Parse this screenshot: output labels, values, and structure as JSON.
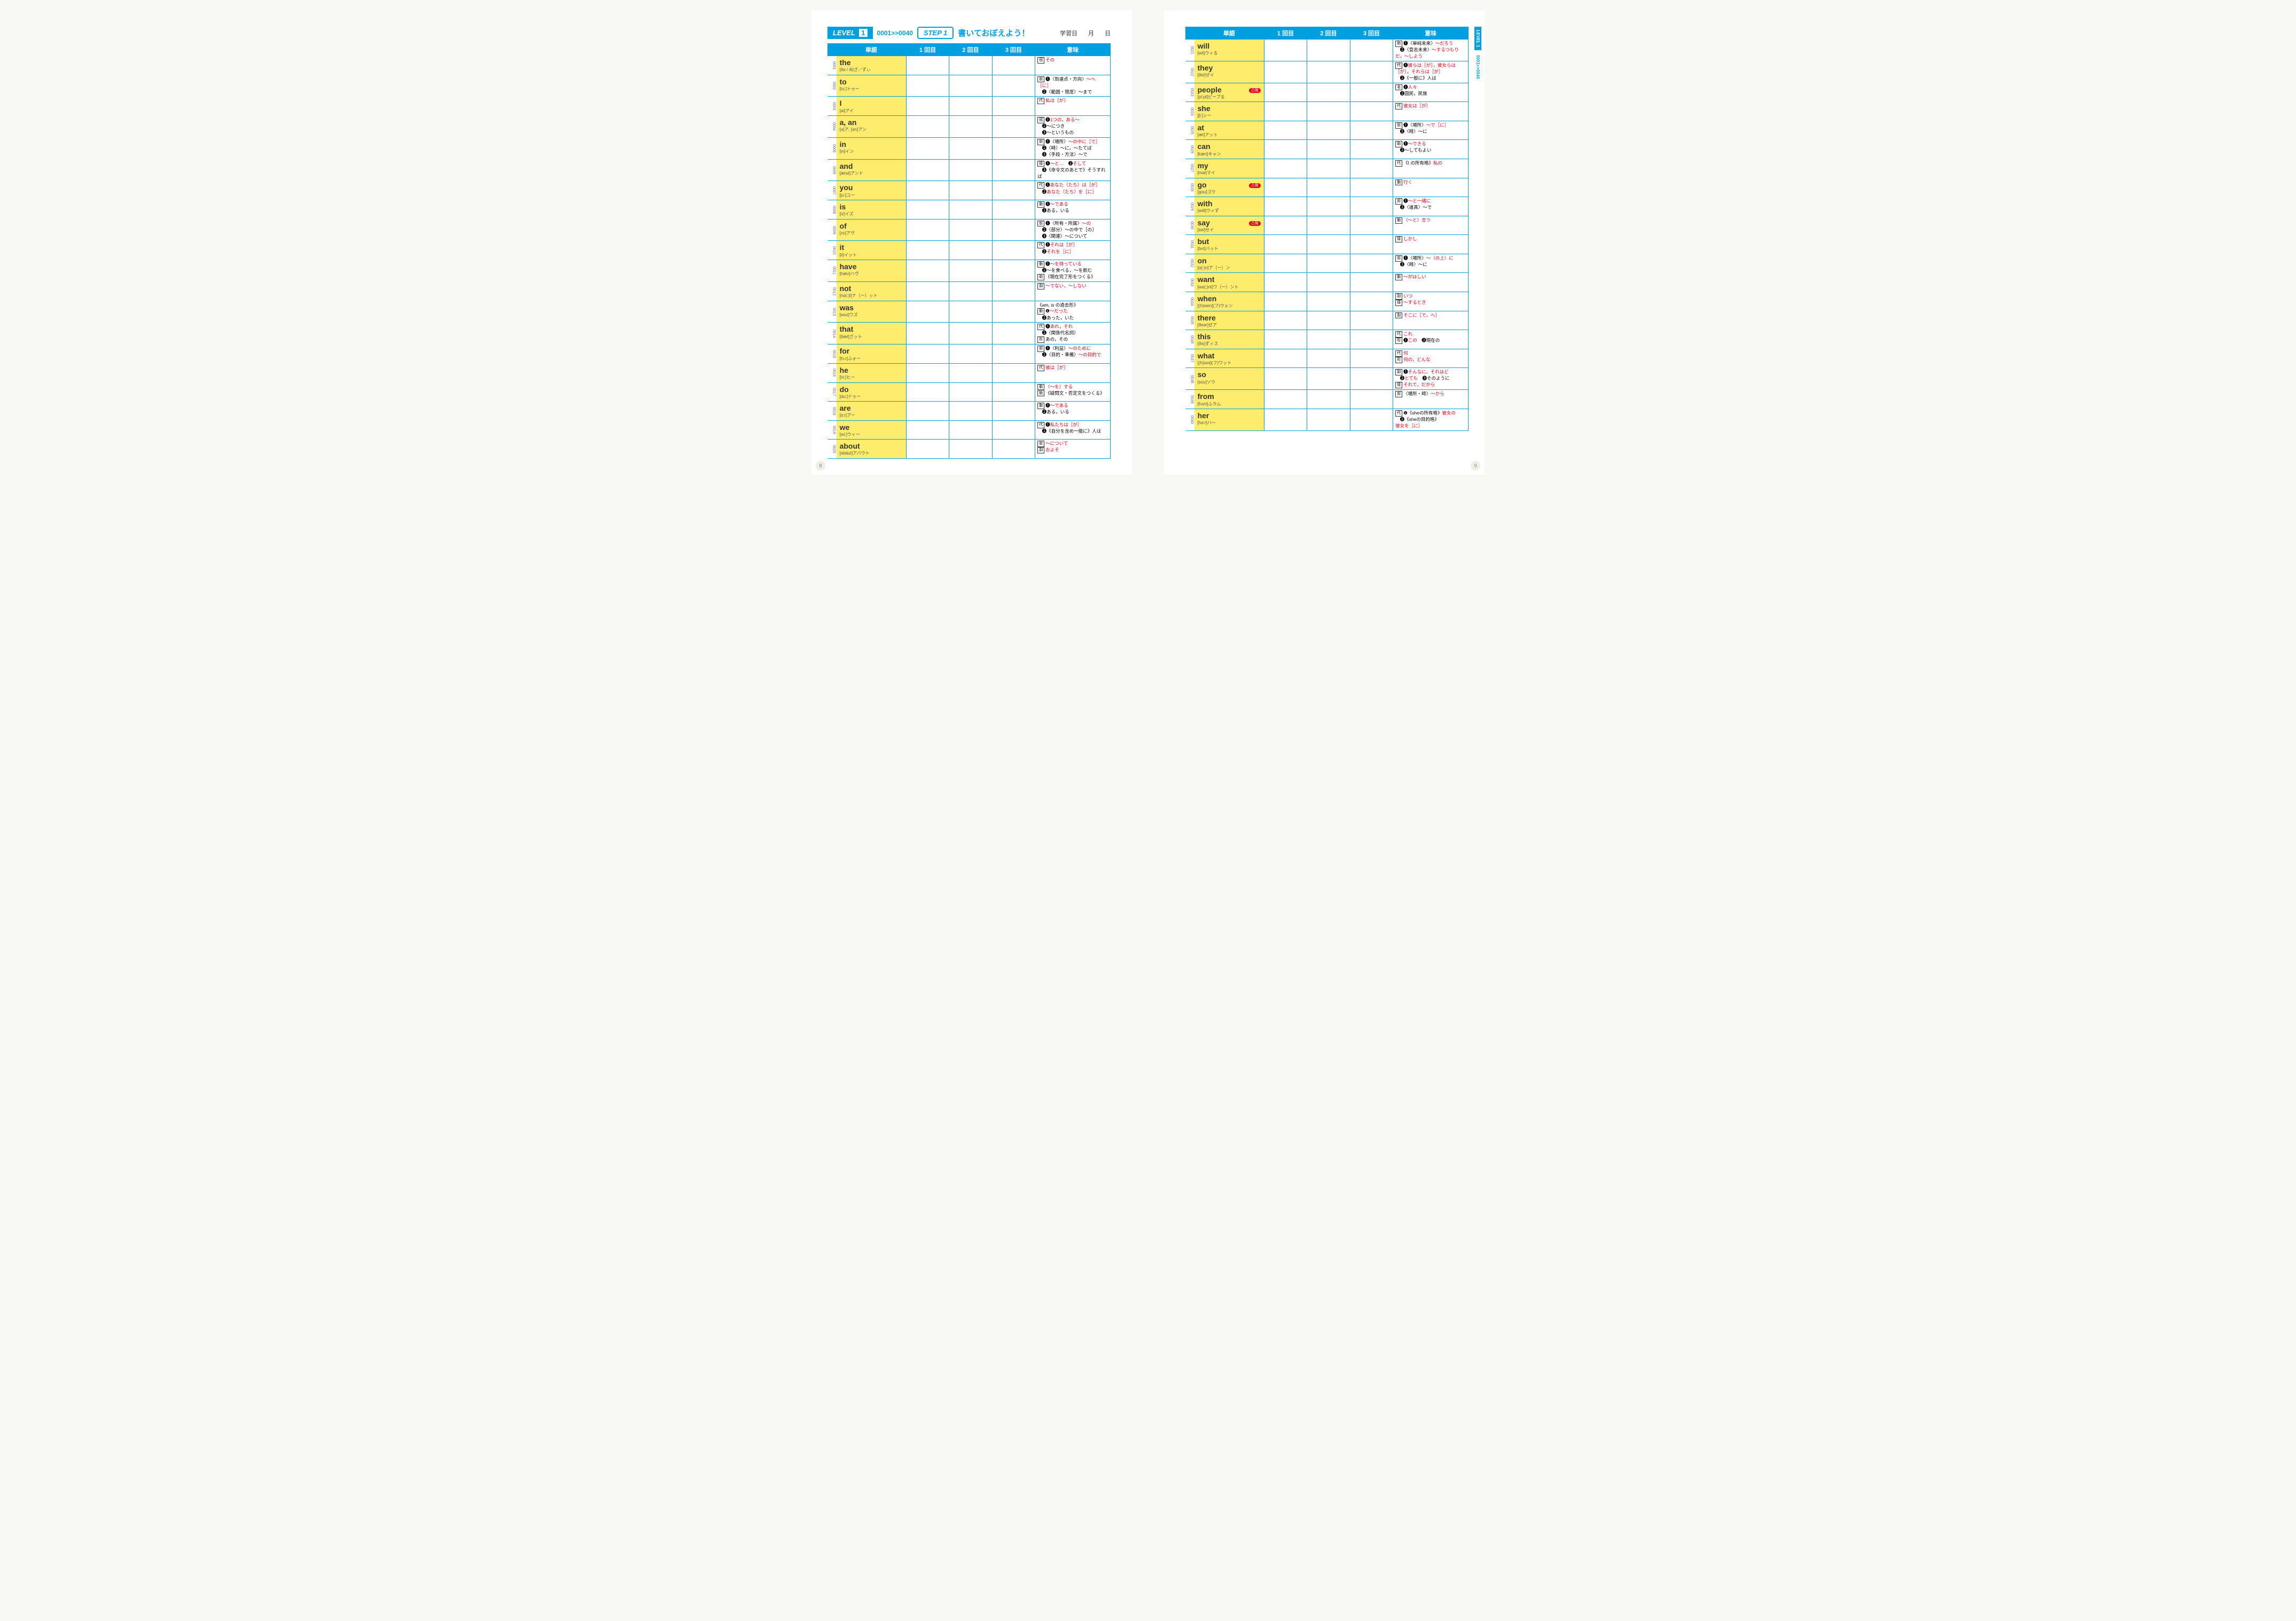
{
  "header": {
    "level": "LEVEL",
    "levelNum": "1",
    "range": "0001>>0040",
    "step": "STEP 1",
    "stepTitle": "書いておぼえよう！",
    "dateLabel": "学習日",
    "month": "月",
    "day": "日"
  },
  "columns": [
    "単語",
    "1 回目",
    "2 回目",
    "3 回目",
    "意味"
  ],
  "pageLeft": "8",
  "pageRight": "9",
  "left": [
    {
      "n": "0001",
      "w": "the",
      "p": "[ðə / ði]ざ／ずぃ",
      "m": "<span class='pos'>冠</span><span class='red'>その</span>"
    },
    {
      "n": "0002",
      "w": "to",
      "p": "[tu:]トゥー",
      "m": "<span class='pos'>前</span>❶〈到達点・方向〉<span class='red'>～へ［に］</span><br>　❷〈範囲・限度〉～まで"
    },
    {
      "n": "0003",
      "w": "I",
      "p": "[ai]アイ",
      "m": "<span class='pos'>代</span><span class='red'>私は［が］</span>"
    },
    {
      "n": "0004",
      "w": "a, an",
      "p": "[ə]ア, [ən]アン",
      "m": "<span class='pos'>冠</span>❶<span class='red'>1つの，ある～</span><br>　❷～につき<br>　❸～というもの"
    },
    {
      "n": "0005",
      "w": "in",
      "p": "[in]イン",
      "m": "<span class='pos'>前</span>❶〈場所〉<span class='red'>～の中に［で］</span><br>　❷〈時〉～に，～たてば<br>　❸〈手段・方法〉～で"
    },
    {
      "n": "0006",
      "w": "and",
      "p": "[ænd]アンド",
      "m": "<span class='pos'>接</span>❶<span class='red'>～と…</span>　❷<span class='red'>そして</span><br>　❸《命令文のあとで》そうすれば"
    },
    {
      "n": "0007",
      "w": "you",
      "p": "[ju:]ユー",
      "m": "<span class='pos'>代</span>❶<span class='red'>あなた（たち）は［が］</span><br>　❷<span class='red'>あなた（たち）を［に］</span>"
    },
    {
      "n": "0008",
      "w": "is",
      "p": "[iz]イズ",
      "m": "<span class='pos'>動</span>❶<span class='red'>～である</span><br>　❷ある，いる"
    },
    {
      "n": "0009",
      "w": "of",
      "p": "[ʌv]アヴ",
      "m": "<span class='pos'>前</span>❶〈所有・所属〉<span class='red'>～の</span><br>　❷〈部分〉～の中で［の］<br>　❸〈関連〉～について"
    },
    {
      "n": "0010",
      "w": "it",
      "p": "[it]イット",
      "m": "<span class='pos'>代</span>❶<span class='red'>それは［が］</span><br>　❷<span class='red'>それを［に］</span>"
    },
    {
      "n": "0011",
      "w": "have",
      "p": "[hæv]ハヴ",
      "m": "<span class='pos'>動</span>❶<span class='red'>～を持っている</span><br>　❷～を食べる，～を飲む<br><span class='pos'>助</span>《現在完了形をつくる》"
    },
    {
      "n": "0012",
      "w": "not",
      "p": "[nɑ(:)t]ナ（ー）ット",
      "m": "<span class='pos'>副</span><span class='red'>～でない，～しない</span>"
    },
    {
      "n": "0013",
      "w": "was",
      "p": "[wʌz]ワズ",
      "m": "《am, is の過去形》<br><span class='pos'>動</span>❶<span class='red'>～だった</span><br>　❷あった，いた"
    },
    {
      "n": "0014",
      "w": "that",
      "p": "[ðæt]ざット",
      "m": "<span class='pos'>代</span>❶<span class='red'>あれ，それ</span><br>　❷〈関係代名詞〉<br><span class='pos'>形</span>あの，その"
    },
    {
      "n": "0015",
      "w": "for",
      "p": "[fɔ:r]ふォー",
      "m": "<span class='pos'>前</span>❶〈利益〉<span class='red'>～のために</span><br>　❷〈目的・準備〉<span class='red'>～の目的で</span>"
    },
    {
      "n": "0016",
      "w": "he",
      "p": "[hi:]ヒー",
      "m": "<span class='pos'>代</span><span class='red'>彼は［が］</span>"
    },
    {
      "n": "0017",
      "w": "do",
      "p": "[du:]ドゥー",
      "m": "<span class='pos'>動</span><span class='red'>（～を）する</span><br><span class='pos'>助</span>《疑問文・否定文をつくる》"
    },
    {
      "n": "0018",
      "w": "are",
      "p": "[ɑ:r]アー",
      "m": "<span class='pos'>動</span>❶<span class='red'>～である</span><br>　❷ある，いる"
    },
    {
      "n": "0019",
      "w": "we",
      "p": "[wi:]ウィー",
      "m": "<span class='pos'>代</span>❶<span class='red'>私たちは［が］</span><br>　❷《自分を含め一般に》人は"
    },
    {
      "n": "0020",
      "w": "about",
      "p": "[əbáut]アバウト",
      "m": "<span class='pos'>前</span><span class='red'>～について</span><br><span class='pos'>副</span><span class='red'>およそ</span>"
    }
  ],
  "right": [
    {
      "n": "0021",
      "w": "will",
      "p": "[wil]ウィる",
      "m": "<span class='pos'>助</span>❶〈単純未来〉<span class='red'>～だろう</span><br>　❷〈意志未来〉<span class='red'>～するつもりだ，～しよう</span>"
    },
    {
      "n": "0022",
      "w": "they",
      "p": "[ðei]ぜイ",
      "m": "<span class='pos'>代</span>❶<span class='red'>彼らは［が］，彼女らは［が］，それらは［が］</span><br>　❷《一般に》人は"
    },
    {
      "n": "0023",
      "w": "people",
      "p": "[pí:pl]ピープる",
      "b": "⚠発",
      "m": "<span class='pos'>名</span>❶<span class='red'>人々</span><br>　❷国民，民族"
    },
    {
      "n": "0024",
      "w": "she",
      "p": "[ʃi:]シー",
      "m": "<span class='pos'>代</span><span class='red'>彼女は［が］</span>"
    },
    {
      "n": "0025",
      "w": "at",
      "p": "[æt]アット",
      "m": "<span class='pos'>前</span>❶〈場所〉<span class='red'>～で［に］</span><br>　❷〈時〉～に"
    },
    {
      "n": "0026",
      "w": "can",
      "p": "[kæn]キャン",
      "m": "<span class='pos'>助</span>❶<span class='red'>～できる</span><br>　❷～してもよい"
    },
    {
      "n": "0027",
      "w": "my",
      "p": "[mai]マイ",
      "m": "<span class='pos'>代</span>《I の所有格》<span class='red'>私の</span>"
    },
    {
      "n": "0028",
      "w": "go",
      "p": "[gou]ゴウ",
      "b": "⚠発",
      "m": "<span class='pos'>動</span><span class='red'>行く</span>"
    },
    {
      "n": "0029",
      "w": "with",
      "p": "[wið]ウィず",
      "m": "<span class='pos'>前</span>❶<span class='red'>～と一緒に</span><br>　❷〈道具〉～で"
    },
    {
      "n": "0030",
      "w": "say",
      "p": "[sei]セイ",
      "b": "⚠発",
      "m": "<span class='pos'>動</span><span class='red'>（～と）言う</span>"
    },
    {
      "n": "0031",
      "w": "but",
      "p": "[bʌt]バット",
      "m": "<span class='pos'>接</span><span class='red'>しかし</span>"
    },
    {
      "n": "0032",
      "w": "on",
      "p": "[ɑ(:)n]ア（ー）ン",
      "m": "<span class='pos'>前</span>❶〈場所〉<span class='red'>～（の上）に</span><br>　❷〈時〉～に"
    },
    {
      "n": "0033",
      "w": "want",
      "p": "[wɑ(:)nt]ワ（ー）ント",
      "m": "<span class='pos'>動</span><span class='red'>～がほしい</span>"
    },
    {
      "n": "0034",
      "w": "when",
      "p": "[(h)wen](フ)ウェン",
      "m": "<span class='pos'>副</span><span class='red'>いつ</span><br><span class='pos'>接</span><span class='red'>～するとき</span>"
    },
    {
      "n": "0035",
      "w": "there",
      "p": "[ðeər]ぜア",
      "m": "<span class='pos'>副</span><span class='red'>そこに［で，へ］</span>"
    },
    {
      "n": "0036",
      "w": "this",
      "p": "[ðis]ずィス",
      "m": "<span class='pos'>代</span><span class='red'>これ</span><br><span class='pos'>形</span>❶<span class='red'>この</span>　❷現在の"
    },
    {
      "n": "0037",
      "w": "what",
      "p": "[(h)wʌt](フ)ワット",
      "m": "<span class='pos'>代</span><span class='red'>何</span><br><span class='pos'>形</span><span class='red'>何の，どんな</span>"
    },
    {
      "n": "0038",
      "w": "so",
      "p": "[sou]ソウ",
      "m": "<span class='pos'>副</span>❶<span class='red'>そんなに，それほど</span><br>　❷<span class='red'>とても</span>　❸そのように<br><span class='pos'>接</span><span class='red'>それで，だから</span>"
    },
    {
      "n": "0039",
      "w": "from",
      "p": "[frʌm]ふラム",
      "m": "<span class='pos'>前</span>〈場所・時〉<span class='red'>～から</span>"
    },
    {
      "n": "0040",
      "w": "her",
      "p": "[hə:r]ハ～",
      "m": "<span class='pos'>代</span>❶《sheの所有格》<span class='red'>彼女の</span><br>　❷《sheの目的格》<span class='red'>彼女を［に］</span>"
    }
  ]
}
